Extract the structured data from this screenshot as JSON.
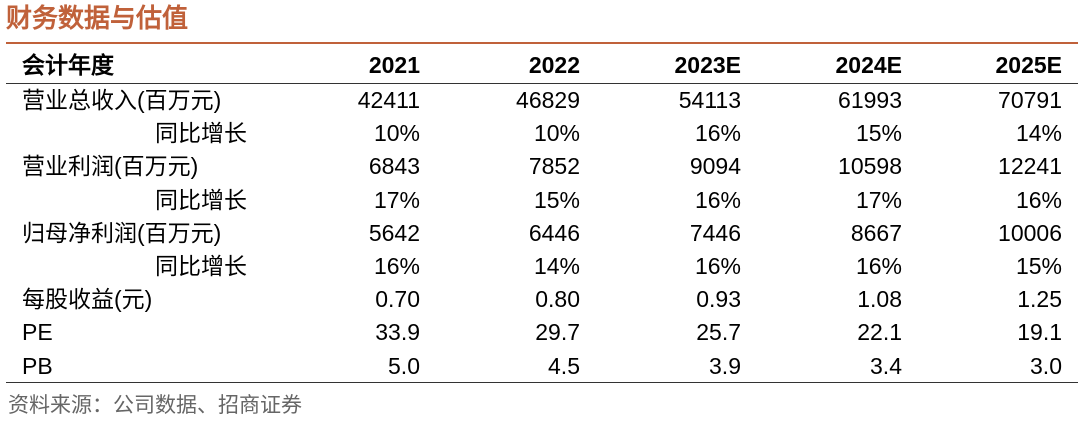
{
  "header": {
    "title": "财务数据与估值"
  },
  "table": {
    "columns": [
      "会计年度",
      "2021",
      "2022",
      "2023E",
      "2024E",
      "2025E"
    ],
    "rows": [
      [
        "营业总收入(百万元)",
        "42411",
        "46829",
        "54113",
        "61993",
        "70791"
      ],
      [
        "同比增长",
        "10%",
        "10%",
        "16%",
        "15%",
        "14%"
      ],
      [
        "营业利润(百万元)",
        "6843",
        "7852",
        "9094",
        "10598",
        "12241"
      ],
      [
        "同比增长",
        "17%",
        "15%",
        "16%",
        "17%",
        "16%"
      ],
      [
        "归母净利润(百万元)",
        "5642",
        "6446",
        "7446",
        "8667",
        "10006"
      ],
      [
        "同比增长",
        "16%",
        "14%",
        "16%",
        "16%",
        "15%"
      ],
      [
        "每股收益(元)",
        "0.70",
        "0.80",
        "0.93",
        "1.08",
        "1.25"
      ],
      [
        "PE",
        "33.9",
        "29.7",
        "25.7",
        "22.1",
        "19.1"
      ],
      [
        "PB",
        "5.0",
        "4.5",
        "3.9",
        "3.4",
        "3.0"
      ]
    ]
  },
  "source": "资料来源：公司数据、招商证券"
}
